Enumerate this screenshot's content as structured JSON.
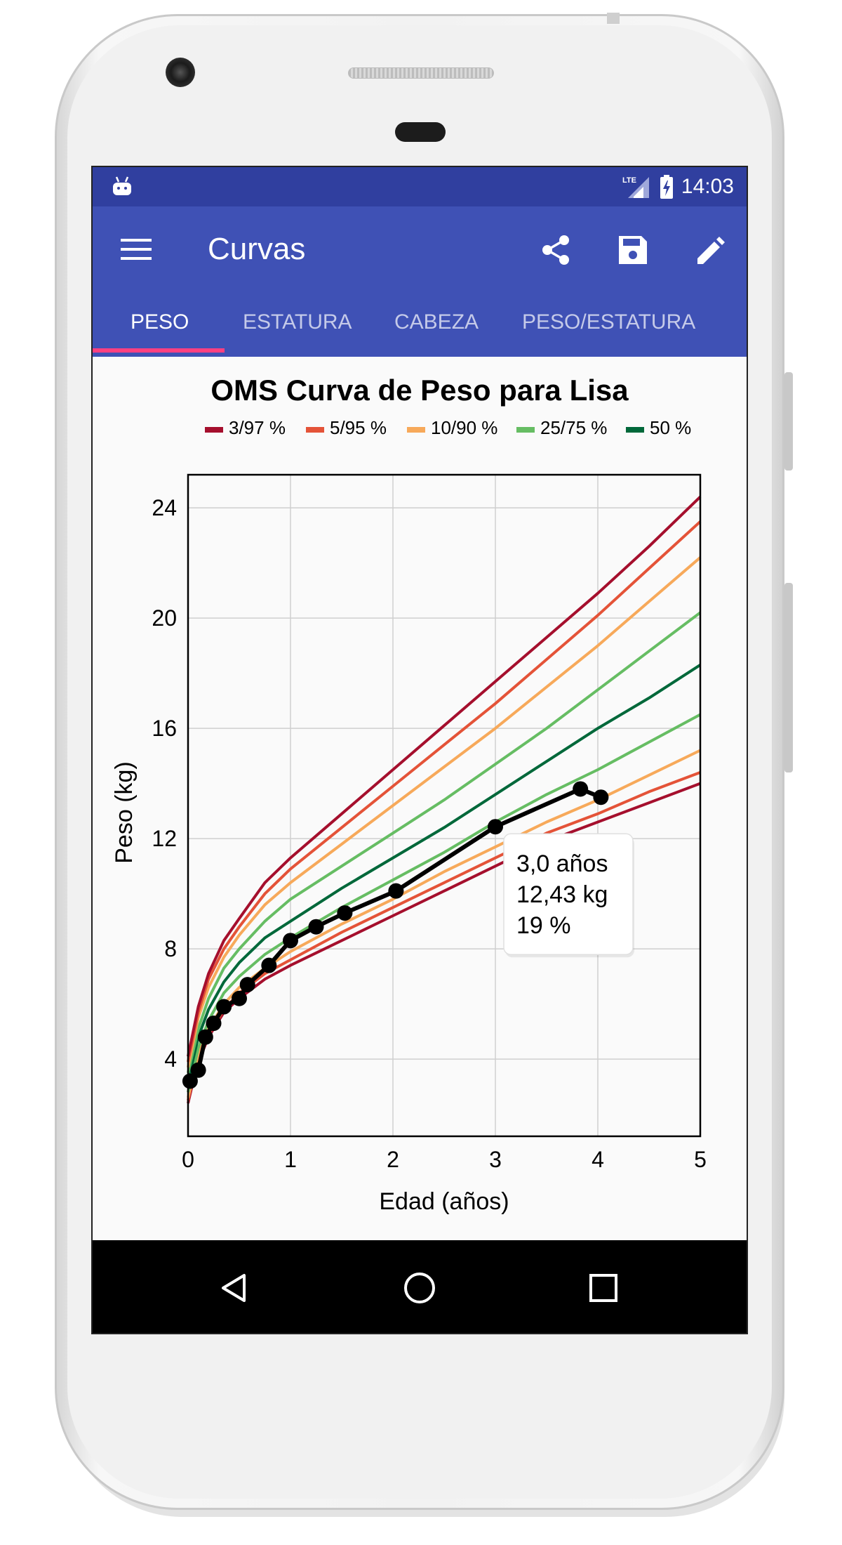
{
  "status_bar": {
    "time": "14:03",
    "network": "LTE",
    "icons": [
      "android-debug-icon",
      "signal-lte-icon",
      "battery-charging-icon"
    ]
  },
  "app_bar": {
    "title": "Curvas",
    "icons": [
      "menu-icon",
      "share-icon",
      "save-icon",
      "edit-icon"
    ]
  },
  "tabs": [
    {
      "label": "PESO",
      "active": true
    },
    {
      "label": "ESTATURA",
      "active": false
    },
    {
      "label": "CABEZA",
      "active": false
    },
    {
      "label": "PESO/ESTATURA",
      "active": false
    }
  ],
  "colors": {
    "primary": "#3f51b5",
    "primary_dark": "#303f9f",
    "accent": "#ff4081"
  },
  "chart_data": {
    "type": "line",
    "title": "OMS Curva de Peso para Lisa",
    "xlabel": "Edad (años)",
    "ylabel": "Peso (kg)",
    "xlim": [
      0,
      5
    ],
    "ylim": [
      1.2,
      25.2
    ],
    "xticks": [
      "0",
      "1",
      "2",
      "3",
      "4",
      "5"
    ],
    "yticks": [
      "4",
      "8",
      "12",
      "16",
      "20",
      "24"
    ],
    "grid": true,
    "legend": [
      {
        "name": "3/97 %",
        "color": "#a50f2d"
      },
      {
        "name": "5/95 %",
        "color": "#e45338"
      },
      {
        "name": "10/90 %",
        "color": "#f7a95a"
      },
      {
        "name": "25/75 %",
        "color": "#66bd63"
      },
      {
        "name": "50 %",
        "color": "#00683a"
      }
    ],
    "percentile_x": [
      0,
      0.05,
      0.1,
      0.2,
      0.35,
      0.5,
      0.75,
      1,
      1.5,
      2,
      2.5,
      3,
      3.5,
      4,
      4.5,
      5
    ],
    "percentile_curves": [
      {
        "legend": "3/97 %",
        "color": "#a50f2d",
        "side": "low",
        "values": [
          2.4,
          3.2,
          3.9,
          4.8,
          5.7,
          6.2,
          6.9,
          7.4,
          8.3,
          9.2,
          10.1,
          11.0,
          11.9,
          12.6,
          13.3,
          14.0
        ]
      },
      {
        "legend": "5/95 %",
        "color": "#e45338",
        "side": "low",
        "values": [
          2.5,
          3.3,
          4.0,
          4.9,
          5.8,
          6.4,
          7.1,
          7.6,
          8.6,
          9.5,
          10.4,
          11.3,
          12.2,
          12.9,
          13.7,
          14.4
        ]
      },
      {
        "legend": "10/90 %",
        "color": "#f7a95a",
        "side": "low",
        "values": [
          2.6,
          3.4,
          4.2,
          5.1,
          6.0,
          6.6,
          7.3,
          7.9,
          8.9,
          9.8,
          10.8,
          11.7,
          12.6,
          13.4,
          14.3,
          15.2
        ]
      },
      {
        "legend": "25/75 %",
        "color": "#66bd63",
        "side": "low",
        "values": [
          2.8,
          3.6,
          4.4,
          5.4,
          6.4,
          7.0,
          7.8,
          8.4,
          9.5,
          10.5,
          11.5,
          12.6,
          13.6,
          14.5,
          15.5,
          16.5
        ]
      },
      {
        "legend": "50 %",
        "color": "#00683a",
        "side": "mid",
        "values": [
          3.2,
          4.0,
          4.8,
          5.8,
          6.8,
          7.5,
          8.4,
          9.0,
          10.2,
          11.3,
          12.4,
          13.6,
          14.8,
          16.0,
          17.1,
          18.3
        ]
      },
      {
        "legend": "25/75 %",
        "color": "#66bd63",
        "side": "high",
        "values": [
          3.5,
          4.3,
          5.1,
          6.2,
          7.3,
          8.0,
          9.0,
          9.8,
          11.0,
          12.2,
          13.4,
          14.7,
          16.0,
          17.4,
          18.8,
          20.2
        ]
      },
      {
        "legend": "10/90 %",
        "color": "#f7a95a",
        "side": "high",
        "values": [
          3.7,
          4.6,
          5.5,
          6.6,
          7.7,
          8.5,
          9.6,
          10.4,
          11.8,
          13.2,
          14.6,
          16.0,
          17.5,
          19.0,
          20.6,
          22.2
        ]
      },
      {
        "legend": "5/95 %",
        "color": "#e45338",
        "side": "high",
        "values": [
          3.9,
          4.8,
          5.7,
          6.9,
          8.0,
          8.8,
          10.0,
          10.9,
          12.4,
          13.9,
          15.4,
          16.9,
          18.5,
          20.1,
          21.8,
          23.5
        ]
      },
      {
        "legend": "3/97 %",
        "color": "#a50f2d",
        "side": "high",
        "values": [
          4.1,
          5.0,
          5.9,
          7.1,
          8.3,
          9.1,
          10.4,
          11.3,
          12.9,
          14.5,
          16.1,
          17.7,
          19.3,
          20.9,
          22.6,
          24.4
        ]
      }
    ],
    "measurements": {
      "name": "Lisa",
      "color": "#000000",
      "x": [
        0.02,
        0.1,
        0.17,
        0.25,
        0.35,
        0.5,
        0.58,
        0.79,
        1.0,
        1.25,
        1.53,
        2.03,
        3.0,
        3.83,
        4.03
      ],
      "y": [
        3.2,
        3.6,
        4.8,
        5.3,
        5.9,
        6.2,
        6.7,
        7.4,
        8.3,
        8.8,
        9.3,
        10.1,
        12.43,
        13.8,
        13.5
      ]
    },
    "tooltip": {
      "line1": "3,0 años",
      "line2": "12,43 kg",
      "line3": "19 %",
      "x": 3.0,
      "y": 12.43
    }
  },
  "nav_bar": {
    "icons": [
      "back-icon",
      "home-icon",
      "recents-icon"
    ]
  }
}
